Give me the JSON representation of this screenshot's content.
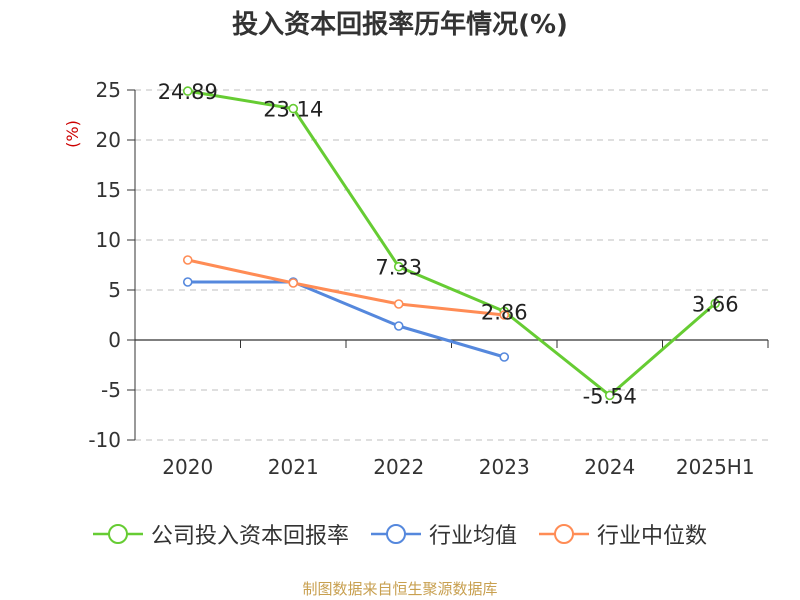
{
  "chart_data": {
    "type": "line",
    "title": "投入资本回报率历年情况(%)",
    "ylabel": "(%)",
    "xlabel": "",
    "categories": [
      "2020",
      "2021",
      "2022",
      "2023",
      "2024",
      "2025H1"
    ],
    "ylim": [
      -10,
      25
    ],
    "yticks": [
      25,
      20,
      15,
      10,
      5,
      0,
      -5,
      -10
    ],
    "grid": true,
    "legend_position": "bottom",
    "series": [
      {
        "name": "公司投入资本回报率",
        "color": "#66cc33",
        "values": [
          24.89,
          23.14,
          7.33,
          2.86,
          -5.54,
          3.66
        ],
        "labels": [
          "24.89",
          "23.14",
          "7.33",
          "2.86",
          "-5.54",
          "3.66"
        ]
      },
      {
        "name": "行业均值",
        "color": "#5588dd",
        "values": [
          5.8,
          5.8,
          1.4,
          -1.7,
          null,
          null
        ]
      },
      {
        "name": "行业中位数",
        "color": "#ff8c55",
        "values": [
          8.0,
          5.7,
          3.6,
          2.5,
          null,
          null
        ]
      }
    ]
  },
  "source_text": "制图数据来自恒生聚源数据库"
}
